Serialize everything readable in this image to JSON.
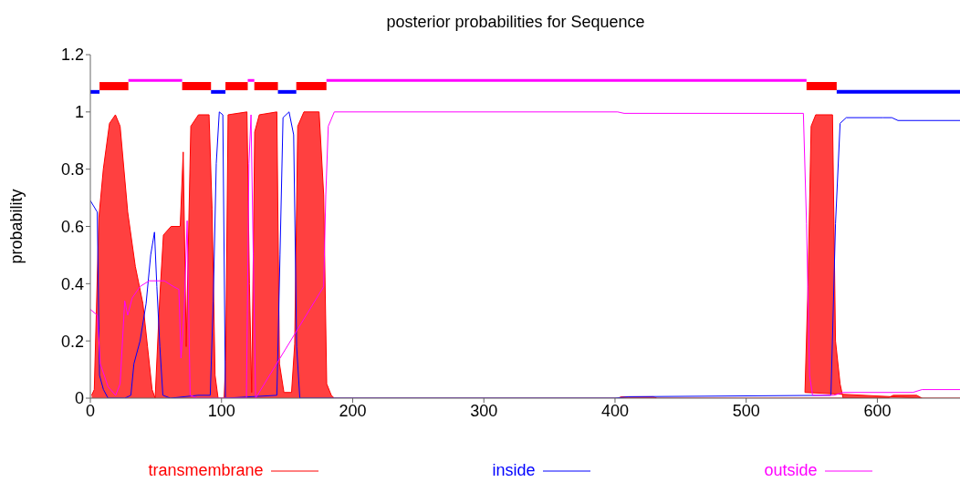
{
  "chart_data": {
    "type": "line",
    "title": "posterior probabilities for Sequence",
    "ylabel": "probability",
    "xlim": [
      0,
      663
    ],
    "xticks": [
      0,
      100,
      200,
      300,
      400,
      500,
      600
    ],
    "ylim": [
      0,
      1.2
    ],
    "yticks": [
      0,
      0.2,
      0.4,
      0.6,
      0.8,
      1,
      1.2
    ],
    "legend": "bottom",
    "grid": false,
    "marker": "none",
    "series": [
      {
        "name": "transmembrane",
        "type": "area",
        "color": "#ff0000",
        "x": [
          1,
          3,
          6.5,
          9.9,
          14.6,
          19.1,
          22.7,
          28.5,
          34.3,
          40.1,
          43.6,
          47.1,
          49.4,
          52.9,
          55.7,
          61.5,
          68.5,
          70.8,
          73.1,
          76.6,
          82.4,
          90.5,
          92.8,
          95.1,
          97.4,
          102,
          103.2,
          105,
          119.4,
          121.3,
          123,
          125.3,
          128.8,
          142.2,
          144.2,
          147.6,
          153.4,
          155.8,
          158.1,
          162.8,
          174.4,
          177.9,
          180.2,
          183.7,
          186,
          402,
          405,
          429,
          432,
          608,
          612,
          630,
          634,
          544.8,
          547.1,
          549.5,
          553,
          565.8,
          568.1,
          571.6,
          573.9,
          663
        ],
        "values": [
          0.01,
          0.03,
          0.63,
          0.8,
          0.96,
          0.99,
          0.95,
          0.65,
          0.46,
          0.33,
          0.18,
          0.03,
          0,
          0.35,
          0.57,
          0.6,
          0.6,
          0.86,
          0.18,
          0.95,
          0.99,
          0.99,
          0.66,
          0.08,
          0,
          0,
          0.13,
          0.99,
          1,
          0.4,
          0.02,
          0.93,
          0.99,
          1,
          0.12,
          0.02,
          0.02,
          0.19,
          0.95,
          1,
          1,
          0.71,
          0.05,
          0.01,
          0,
          0,
          0.005,
          0.005,
          0,
          0,
          0.01,
          0.01,
          0,
          0.02,
          0.39,
          0.95,
          0.99,
          0.99,
          0.2,
          0.05,
          0,
          0
        ]
      },
      {
        "name": "inside",
        "color": "#0000ff",
        "x": [
          0,
          5.3,
          7,
          10,
          13.5,
          26.3,
          30.9,
          33.2,
          37.9,
          42.5,
          46,
          48.9,
          50.7,
          53,
          55.3,
          61.1,
          82,
          91.4,
          93.7,
          96,
          98.3,
          101,
          103,
          142.2,
          144.6,
          146.9,
          151.5,
          155,
          157.3,
          159.7,
          400,
          410,
          564.6,
          568.1,
          571.6,
          576.3,
          604.1,
          611,
          615.7,
          663
        ],
        "values": [
          0.69,
          0.65,
          0.08,
          0.03,
          0,
          0,
          0.01,
          0.12,
          0.2,
          0.33,
          0.5,
          0.58,
          0.39,
          0.18,
          0.01,
          0,
          0.01,
          0.01,
          0.34,
          0.82,
          1,
          0.99,
          0,
          0.01,
          0.5,
          0.98,
          1,
          0.92,
          0.18,
          0,
          0,
          0.005,
          0.01,
          0.61,
          0.96,
          0.98,
          0.98,
          0.98,
          0.97,
          0.97
        ]
      },
      {
        "name": "outside",
        "color": "#ff00ff",
        "x": [
          0,
          5.3,
          7.6,
          13.5,
          19.3,
          22.7,
          26.2,
          28.5,
          31.9,
          37.9,
          44.8,
          56.4,
          63.3,
          67.5,
          69.1,
          71.4,
          73.8,
          76.1,
          81.9,
          119,
          120.9,
          122.5,
          124.2,
          126,
          177.9,
          179.5,
          181.4,
          186,
          402,
          407,
          543.6,
          546,
          548.3,
          550.6,
          566.8,
          573.8,
          627,
          634,
          663
        ],
        "values": [
          0.31,
          0.29,
          0.12,
          0.04,
          0.01,
          0.05,
          0.34,
          0.29,
          0.35,
          0.39,
          0.41,
          0.41,
          0.39,
          0.38,
          0.14,
          0.29,
          0.62,
          0.01,
          0,
          0,
          0.82,
          0.99,
          0.5,
          0,
          0.39,
          0.71,
          0.95,
          1,
          1,
          0.995,
          0.995,
          0.61,
          0.08,
          0.01,
          0.01,
          0.02,
          0.02,
          0.03,
          0.03
        ]
      },
      {
        "color": "#ff00ff",
        "x": [
          29,
          70
        ],
        "values": [
          1.11,
          1.11
        ]
      },
      {
        "color": "#ff00ff",
        "x": [
          120,
          125
        ],
        "values": [
          1.11,
          1.11
        ]
      },
      {
        "color": "#ff00ff",
        "x": [
          180,
          546
        ],
        "values": [
          1.11,
          1.11
        ]
      },
      {
        "color": "#0000ff",
        "x": [
          0,
          7
        ],
        "values": [
          1.07,
          1.07
        ]
      },
      {
        "color": "#0000ff",
        "x": [
          92,
          103
        ],
        "values": [
          1.07,
          1.07
        ]
      },
      {
        "color": "#0000ff",
        "x": [
          143,
          157
        ],
        "values": [
          1.07,
          1.07
        ]
      },
      {
        "color": "#0000ff",
        "x": [
          569,
          663
        ],
        "values": [
          1.07,
          1.07
        ]
      },
      {
        "color": "#ff0000",
        "x": [
          7,
          29
        ],
        "values": [
          1.09,
          1.09
        ]
      },
      {
        "color": "#ff0000",
        "x": [
          70,
          92
        ],
        "values": [
          1.09,
          1.09
        ]
      },
      {
        "color": "#ff0000",
        "x": [
          103,
          120
        ],
        "values": [
          1.09,
          1.09
        ]
      },
      {
        "color": "#ff0000",
        "x": [
          125,
          143
        ],
        "values": [
          1.09,
          1.09
        ]
      },
      {
        "color": "#ff0000",
        "x": [
          157,
          180
        ],
        "values": [
          1.09,
          1.09
        ]
      },
      {
        "color": "#ff0000",
        "x": [
          546,
          569
        ],
        "values": [
          1.09,
          1.09
        ]
      }
    ]
  }
}
